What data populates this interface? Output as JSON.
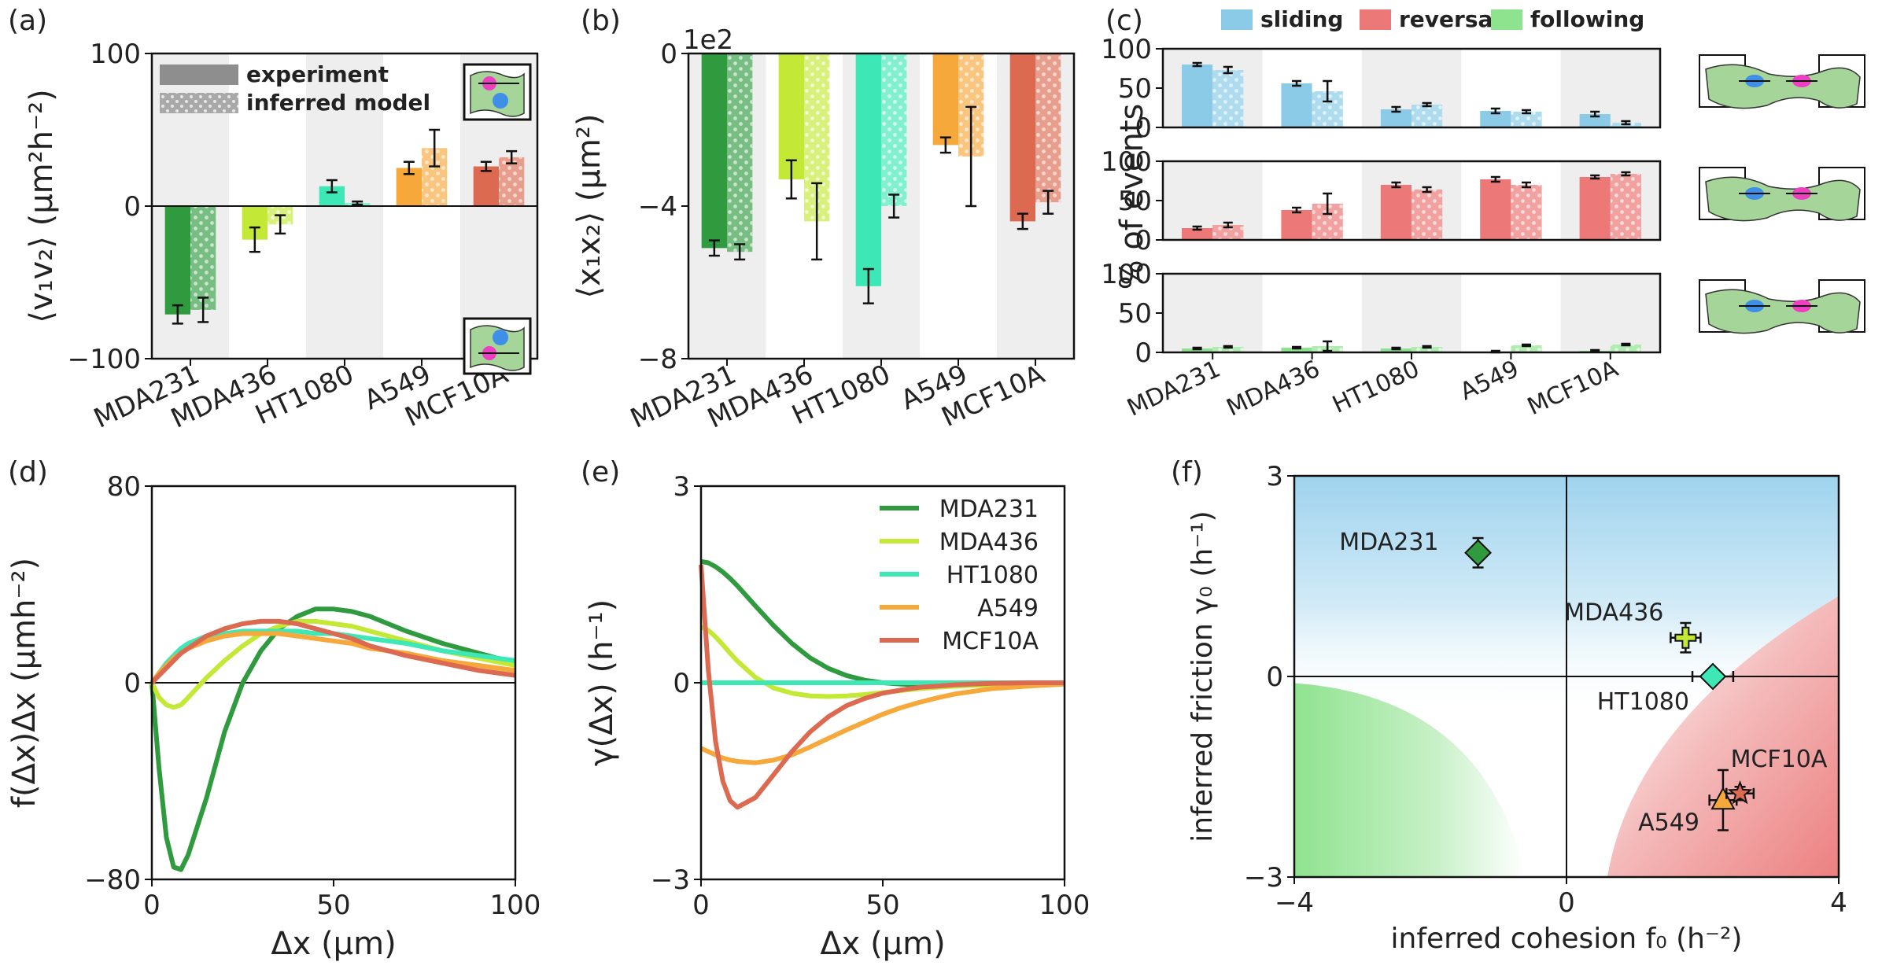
{
  "panels": {
    "a": "(a)",
    "b": "(b)",
    "c": "(c)",
    "d": "(d)",
    "e": "(e)",
    "f": "(f)"
  },
  "colors": {
    "MDA231": "#2f9a3e",
    "MDA436": "#c3e835",
    "HT1080": "#3ee8b6",
    "A549": "#f7a83a",
    "MCF10A": "#db6a50",
    "sliding": "#8ccbe8",
    "reversal": "#ec7878",
    "following": "#8ee48e"
  },
  "chart_data": [
    {
      "id": "a",
      "type": "bar",
      "categories": [
        "MDA231",
        "MDA436",
        "HT1080",
        "A549",
        "MCF10A"
      ],
      "series": [
        {
          "name": "experiment",
          "values": [
            -71,
            -22,
            13,
            25,
            26
          ],
          "errors": [
            6,
            8,
            4,
            4,
            3
          ]
        },
        {
          "name": "inferred model",
          "values": [
            -68,
            -12,
            2,
            38,
            32
          ],
          "errors": [
            8,
            6,
            1,
            12,
            4
          ]
        }
      ],
      "legend": [
        "experiment",
        "inferred model"
      ],
      "ylabel": "⟨v₁v₂⟩ (μm²h⁻²)",
      "ylim": [
        -100,
        100
      ],
      "yticks": [
        "−100",
        "0",
        "100"
      ]
    },
    {
      "id": "b",
      "type": "bar",
      "categories": [
        "MDA231",
        "MDA436",
        "HT1080",
        "A549",
        "MCF10A"
      ],
      "series": [
        {
          "name": "experiment",
          "values": [
            -5.1,
            -3.3,
            -6.1,
            -2.4,
            -4.4
          ],
          "errors": [
            0.2,
            0.5,
            0.45,
            0.2,
            0.2
          ]
        },
        {
          "name": "inferred model",
          "values": [
            -5.2,
            -4.4,
            -4.0,
            -2.7,
            -3.9
          ],
          "errors": [
            0.2,
            1.0,
            0.3,
            1.3,
            0.3
          ]
        }
      ],
      "ylabel": "⟨x₁x₂⟩ (μm²)",
      "scale_label": "1e2",
      "ylim": [
        -8,
        0
      ],
      "yticks": [
        "−8",
        "−4",
        "0"
      ]
    },
    {
      "id": "c",
      "type": "bar",
      "categories": [
        "MDA231",
        "MDA436",
        "HT1080",
        "A549",
        "MCF10A"
      ],
      "legend": [
        "sliding",
        "reversal",
        "following"
      ],
      "ylabel": "% of events",
      "ylim": [
        0,
        100
      ],
      "yticks": [
        "0",
        "50",
        "100"
      ],
      "rows": [
        {
          "name": "sliding",
          "experiment": [
            80,
            56,
            23,
            21,
            17
          ],
          "experiment_errors": [
            2,
            3,
            3,
            3,
            3
          ],
          "model": [
            73,
            46,
            29,
            20,
            6
          ],
          "model_errors": [
            4,
            13,
            2,
            2,
            2
          ]
        },
        {
          "name": "reversal",
          "experiment": [
            15,
            38,
            70,
            77,
            80
          ],
          "experiment_errors": [
            2,
            3,
            3,
            3,
            2
          ],
          "model": [
            19,
            46,
            64,
            70,
            84
          ],
          "model_errors": [
            3,
            13,
            3,
            3,
            2
          ]
        },
        {
          "name": "following",
          "experiment": [
            5,
            6,
            5,
            1,
            2
          ],
          "experiment_errors": [
            1,
            1,
            1,
            1,
            1
          ],
          "model": [
            7,
            8,
            7,
            9,
            10
          ],
          "model_errors": [
            1,
            6,
            1,
            1,
            1
          ]
        }
      ]
    },
    {
      "id": "d",
      "type": "line",
      "xlabel": "Δx (μm)",
      "ylabel": "f(Δx)Δx (μmh⁻²)",
      "xlim": [
        0,
        100
      ],
      "ylim": [
        -80,
        80
      ],
      "xticks": [
        "0",
        "50",
        "100"
      ],
      "yticks": [
        "−80",
        "0",
        "80"
      ],
      "x": [
        0,
        2,
        4,
        6,
        8,
        10,
        15,
        20,
        25,
        30,
        35,
        40,
        45,
        50,
        55,
        60,
        65,
        70,
        80,
        90,
        100
      ],
      "series": [
        {
          "name": "MDA231",
          "values": [
            0,
            -35,
            -63,
            -75,
            -76,
            -70,
            -47,
            -20,
            0,
            13,
            22,
            27,
            30,
            30,
            29,
            27,
            24,
            21,
            16,
            12,
            8
          ]
        },
        {
          "name": "MDA436",
          "values": [
            0,
            -6,
            -9,
            -10,
            -9,
            -6,
            2,
            9,
            15,
            20,
            23,
            25,
            25,
            24,
            23,
            21,
            19,
            17,
            13,
            10,
            7
          ]
        },
        {
          "name": "HT1080",
          "values": [
            0,
            4,
            8,
            11,
            14,
            16,
            19,
            20,
            21,
            21,
            21,
            21,
            20,
            20,
            19,
            18,
            17,
            16,
            13,
            11,
            9
          ]
        },
        {
          "name": "A549",
          "values": [
            0,
            4,
            7,
            10,
            12,
            14,
            17,
            19,
            20,
            20,
            20,
            19,
            18,
            17,
            16,
            14,
            13,
            12,
            9,
            7,
            5
          ]
        },
        {
          "name": "MCF10A",
          "values": [
            0,
            3,
            6,
            9,
            12,
            14,
            19,
            22,
            24,
            25,
            25,
            24,
            22,
            20,
            18,
            15,
            13,
            11,
            8,
            5,
            3
          ]
        }
      ]
    },
    {
      "id": "e",
      "type": "line",
      "xlabel": "Δx (μm)",
      "ylabel": "γ(Δx) (h⁻¹)",
      "xlim": [
        0,
        100
      ],
      "ylim": [
        -3,
        3
      ],
      "xticks": [
        "0",
        "50",
        "100"
      ],
      "yticks": [
        "−3",
        "0",
        "3"
      ],
      "x": [
        0,
        2,
        4,
        6,
        8,
        10,
        15,
        20,
        25,
        30,
        35,
        40,
        45,
        50,
        55,
        60,
        65,
        70,
        80,
        90,
        100
      ],
      "series": [
        {
          "name": "MDA231",
          "values": [
            1.85,
            1.83,
            1.77,
            1.69,
            1.59,
            1.48,
            1.17,
            0.87,
            0.6,
            0.38,
            0.22,
            0.11,
            0.04,
            0.0,
            -0.02,
            -0.03,
            -0.03,
            -0.03,
            -0.02,
            -0.01,
            0.0
          ]
        },
        {
          "name": "MDA436",
          "values": [
            0.85,
            0.8,
            0.7,
            0.58,
            0.45,
            0.33,
            0.08,
            -0.08,
            -0.16,
            -0.2,
            -0.21,
            -0.2,
            -0.18,
            -0.15,
            -0.12,
            -0.09,
            -0.07,
            -0.05,
            -0.03,
            -0.01,
            0.0
          ]
        },
        {
          "name": "HT1080",
          "values": [
            0,
            0,
            0,
            0,
            0,
            0,
            0,
            0,
            0,
            0,
            0,
            0,
            0,
            0,
            0,
            0,
            0,
            0,
            0,
            0,
            0
          ]
        },
        {
          "name": "A549",
          "values": [
            -1.0,
            -1.05,
            -1.1,
            -1.15,
            -1.18,
            -1.2,
            -1.22,
            -1.18,
            -1.1,
            -0.98,
            -0.85,
            -0.72,
            -0.6,
            -0.48,
            -0.38,
            -0.3,
            -0.23,
            -0.17,
            -0.09,
            -0.05,
            -0.02
          ]
        },
        {
          "name": "MCF10A",
          "values": [
            1.8,
            0.2,
            -0.9,
            -1.5,
            -1.8,
            -1.9,
            -1.75,
            -1.4,
            -1.05,
            -0.75,
            -0.52,
            -0.35,
            -0.24,
            -0.16,
            -0.11,
            -0.07,
            -0.05,
            -0.03,
            -0.01,
            0.0,
            0.0
          ]
        }
      ]
    },
    {
      "id": "f",
      "type": "scatter",
      "xlabel": "inferred cohesion f₀ (h⁻²)",
      "ylabel": "inferred friction γ₀ (h⁻¹)",
      "xlim": [
        -4,
        4
      ],
      "ylim": [
        -3,
        3
      ],
      "xticks": [
        "−4",
        "0",
        "4"
      ],
      "yticks": [
        "−3",
        "0",
        "3"
      ],
      "background": {
        "top": "sliding",
        "bottom-left": "following",
        "bottom-right": "reversal"
      },
      "points": [
        {
          "name": "MDA231",
          "label": "MDA231",
          "x": -1.3,
          "y": 1.85,
          "xerr": 0.1,
          "yerr": 0.22,
          "marker": "diamond"
        },
        {
          "name": "MDA436",
          "label": "MDA436",
          "x": 1.75,
          "y": 0.58,
          "xerr": 0.22,
          "yerr": 0.22,
          "marker": "plus"
        },
        {
          "name": "HT1080",
          "label": "HT1080",
          "x": 2.15,
          "y": 0.0,
          "xerr": 0.3,
          "yerr": 0.1,
          "marker": "diamond"
        },
        {
          "name": "A549",
          "label": "A549",
          "x": 2.3,
          "y": -1.85,
          "xerr": 0.2,
          "yerr": 0.45,
          "marker": "triangle"
        },
        {
          "name": "MCF10A",
          "label": "MCF10A",
          "x": 2.55,
          "y": -1.75,
          "xerr": 0.2,
          "yerr": 0.1,
          "marker": "star"
        }
      ]
    }
  ]
}
